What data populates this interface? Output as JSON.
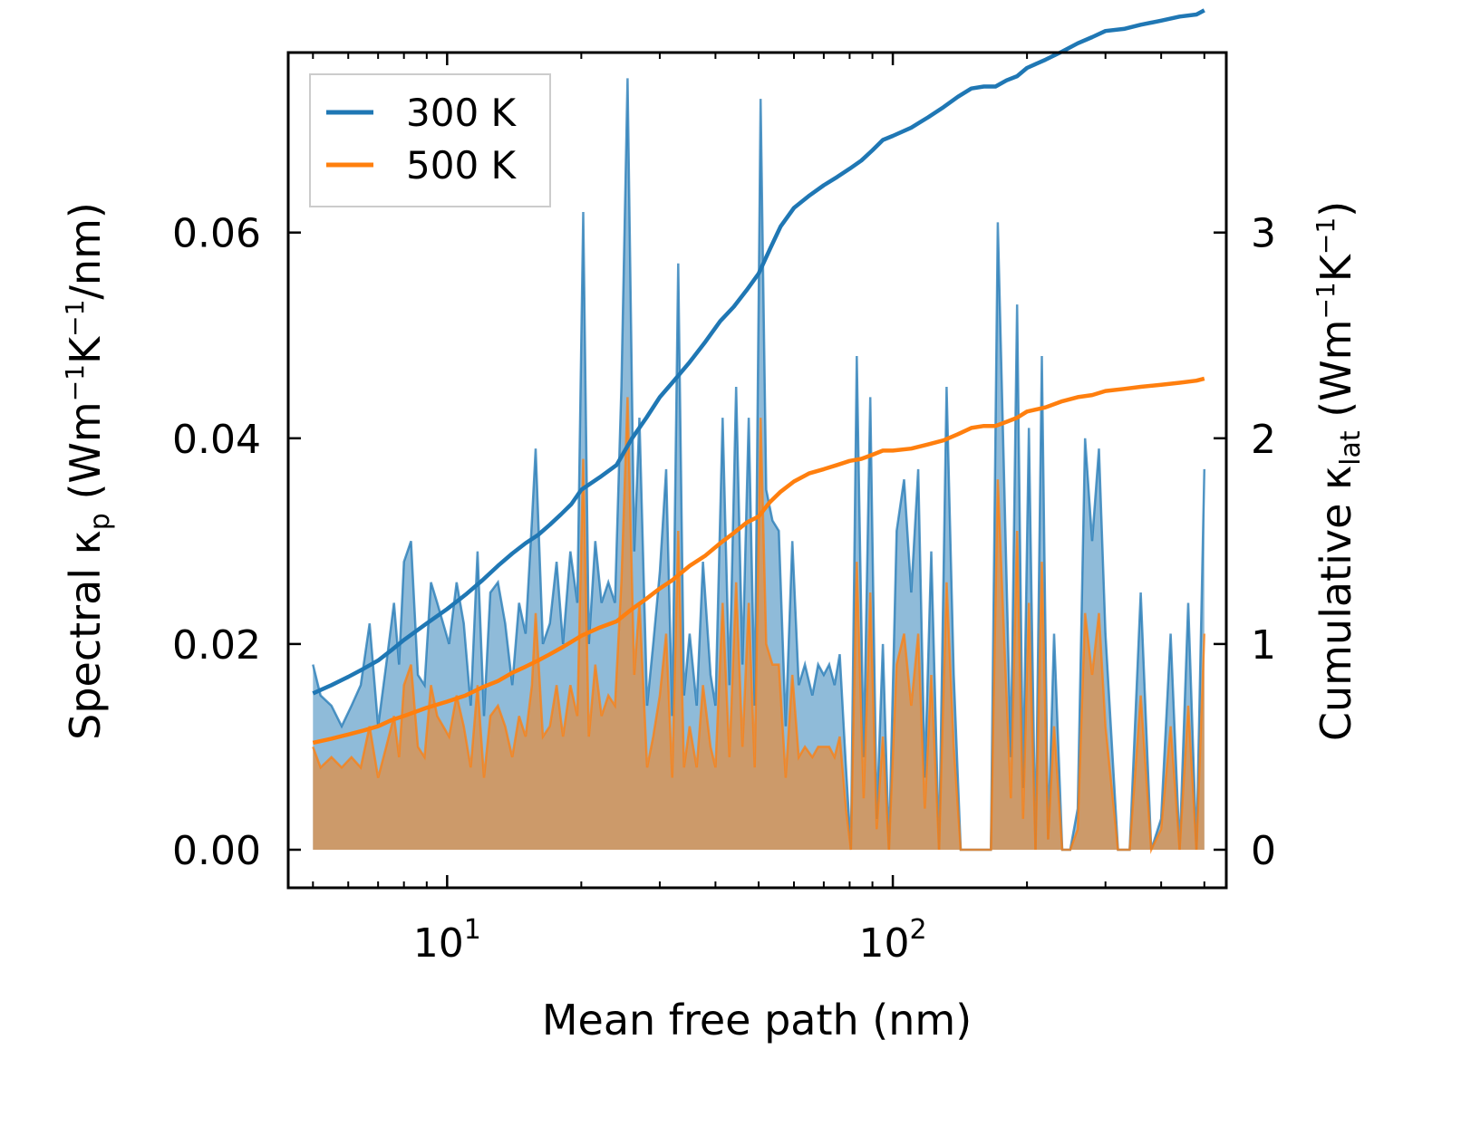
{
  "chart_data": {
    "type": "line",
    "xscale": "log",
    "xlim": [
      4.4,
      560
    ],
    "xlabel": "Mean free path (nm)",
    "ylabel_left": {
      "prefix": "Spectral κ",
      "sub": "p",
      "units_main": " (Wm",
      "exp1": "−1",
      "units_k": "K",
      "exp2": "−1",
      "units_tail": "/nm)"
    },
    "ylabel_right": {
      "prefix": "Cumulative κ",
      "sub": "lat",
      "units_main": " (Wm",
      "exp1": "−1",
      "units_k": "K",
      "exp2": "−1",
      "units_tail": ")"
    },
    "ylim_left": [
      -0.0037,
      0.0775
    ],
    "ylim_right": [
      -0.185,
      3.875
    ],
    "xticks": [
      {
        "base": "10",
        "exp": "1",
        "value": 10
      },
      {
        "base": "10",
        "exp": "2",
        "value": 100
      }
    ],
    "yticks_left": [
      "0.00",
      "0.02",
      "0.04",
      "0.06"
    ],
    "yticks_left_values": [
      0,
      0.02,
      0.04,
      0.06
    ],
    "yticks_right": [
      "0",
      "1",
      "2",
      "3"
    ],
    "yticks_right_values": [
      0,
      1,
      2,
      3
    ],
    "legend": {
      "position": "top-left",
      "entries": [
        "300 K",
        "500 K"
      ]
    },
    "colors": {
      "s300": "#1f77b4",
      "s500": "#ff7f0e",
      "fill300": "#1f77b4",
      "fill500": "#ff7f0e"
    },
    "spectral": [
      {
        "name": "300 K",
        "x": [
          5,
          5.2,
          5.5,
          5.8,
          6.1,
          6.4,
          6.7,
          7.0,
          7.3,
          7.6,
          7.8,
          8.0,
          8.3,
          8.6,
          8.9,
          9.2,
          9.5,
          9.8,
          10.1,
          10.5,
          10.9,
          11.3,
          11.7,
          12.1,
          12.5,
          13.0,
          13.5,
          14.0,
          14.5,
          15.0,
          15.5,
          15.8,
          16.4,
          17.0,
          17.6,
          18.2,
          18.9,
          19.6,
          20.2,
          20.8,
          21.5,
          22.2,
          23.0,
          23.8,
          24.6,
          25.4,
          26.3,
          27.0,
          28.1,
          29.0,
          30.0,
          31.0,
          32.0,
          33.0,
          34.0,
          35.0,
          36.3,
          37.5,
          39.0,
          40.0,
          41.5,
          43.0,
          44.5,
          46.0,
          47.5,
          49.0,
          50.5,
          52.0,
          53.7,
          55.5,
          57.5,
          59.5,
          61.5,
          63.5,
          66.0,
          68.0,
          70.0,
          72.0,
          74.0,
          76.0,
          78.5,
          80.5,
          83.0,
          86.0,
          89.0,
          92.0,
          95.0,
          98.0,
          102,
          106,
          110,
          114,
          118,
          122,
          127,
          132,
          137,
          142,
          148,
          154,
          160,
          166,
          172,
          178,
          184,
          190,
          196,
          202,
          209,
          216,
          223,
          230,
          240,
          250,
          260,
          270,
          280,
          290,
          300,
          320,
          340,
          360,
          380,
          400,
          420,
          440,
          460,
          480,
          500
        ],
        "y": [
          0.018,
          0.015,
          0.014,
          0.012,
          0.014,
          0.016,
          0.022,
          0.012,
          0.018,
          0.024,
          0.018,
          0.028,
          0.03,
          0.017,
          0.016,
          0.026,
          0.024,
          0.022,
          0.02,
          0.026,
          0.022,
          0.014,
          0.029,
          0.013,
          0.025,
          0.026,
          0.022,
          0.016,
          0.024,
          0.021,
          0.032,
          0.039,
          0.02,
          0.022,
          0.028,
          0.02,
          0.029,
          0.024,
          0.062,
          0.02,
          0.03,
          0.024,
          0.026,
          0.024,
          0.045,
          0.075,
          0.029,
          0.042,
          0.014,
          0.02,
          0.027,
          0.037,
          0.013,
          0.057,
          0.015,
          0.021,
          0.014,
          0.028,
          0.017,
          0.014,
          0.042,
          0.016,
          0.045,
          0.018,
          0.042,
          0.014,
          0.073,
          0.035,
          0.032,
          0.031,
          0.012,
          0.03,
          0.016,
          0.018,
          0.015,
          0.018,
          0.017,
          0.018,
          0.016,
          0.019,
          0.008,
          0.0,
          0.048,
          0.009,
          0.044,
          0.003,
          0.02,
          0.0,
          0.031,
          0.036,
          0.025,
          0.037,
          0.007,
          0.029,
          0.0,
          0.045,
          0.017,
          0.0,
          0.0,
          0.0,
          0.0,
          0.0,
          0.061,
          0.035,
          0.009,
          0.053,
          0.006,
          0.041,
          0.0,
          0.048,
          0.001,
          0.021,
          0.0,
          0.0,
          0.004,
          0.04,
          0.03,
          0.039,
          0.021,
          0.0,
          0.0,
          0.025,
          0.0,
          0.003,
          0.021,
          0.0,
          0.024,
          0.0,
          0.037
        ]
      },
      {
        "name": "500 K",
        "x": [
          5,
          5.2,
          5.5,
          5.8,
          6.1,
          6.4,
          6.7,
          7.0,
          7.3,
          7.6,
          7.8,
          8.0,
          8.3,
          8.6,
          8.9,
          9.2,
          9.5,
          9.8,
          10.1,
          10.5,
          10.9,
          11.3,
          11.7,
          12.1,
          12.5,
          13.0,
          13.5,
          14.0,
          14.5,
          15.0,
          15.5,
          15.8,
          16.4,
          17.0,
          17.6,
          18.2,
          18.9,
          19.6,
          20.2,
          20.8,
          21.5,
          22.2,
          23.0,
          23.8,
          24.6,
          25.4,
          26.3,
          27.0,
          28.1,
          29.0,
          30.0,
          31.0,
          32.0,
          33.0,
          34.0,
          35.0,
          36.3,
          37.5,
          39.0,
          40.0,
          41.5,
          43.0,
          44.5,
          46.0,
          47.5,
          49.0,
          50.5,
          52.0,
          53.7,
          55.5,
          57.5,
          59.5,
          61.5,
          63.5,
          66.0,
          68.0,
          70.0,
          72.0,
          74.0,
          76.0,
          78.5,
          80.5,
          83.0,
          86.0,
          89.0,
          92.0,
          95.0,
          98.0,
          102,
          106,
          110,
          114,
          118,
          122,
          127,
          132,
          137,
          142,
          148,
          154,
          160,
          166,
          172,
          178,
          184,
          190,
          196,
          202,
          209,
          216,
          223,
          230,
          240,
          250,
          260,
          270,
          280,
          290,
          300,
          320,
          340,
          360,
          380,
          400,
          420,
          440,
          460,
          480,
          500
        ],
        "y": [
          0.01,
          0.008,
          0.009,
          0.008,
          0.009,
          0.008,
          0.012,
          0.007,
          0.01,
          0.013,
          0.009,
          0.016,
          0.018,
          0.01,
          0.009,
          0.016,
          0.013,
          0.012,
          0.011,
          0.015,
          0.012,
          0.008,
          0.016,
          0.007,
          0.013,
          0.014,
          0.012,
          0.009,
          0.013,
          0.011,
          0.016,
          0.023,
          0.011,
          0.012,
          0.016,
          0.011,
          0.016,
          0.013,
          0.038,
          0.011,
          0.018,
          0.013,
          0.015,
          0.014,
          0.026,
          0.044,
          0.017,
          0.024,
          0.008,
          0.011,
          0.015,
          0.021,
          0.007,
          0.031,
          0.008,
          0.012,
          0.008,
          0.016,
          0.01,
          0.008,
          0.024,
          0.009,
          0.026,
          0.01,
          0.024,
          0.008,
          0.042,
          0.02,
          0.018,
          0.018,
          0.007,
          0.017,
          0.009,
          0.01,
          0.009,
          0.01,
          0.01,
          0.01,
          0.009,
          0.011,
          0.004,
          0.0,
          0.028,
          0.005,
          0.025,
          0.002,
          0.011,
          0.0,
          0.018,
          0.021,
          0.014,
          0.021,
          0.004,
          0.017,
          0.0,
          0.026,
          0.01,
          0.0,
          0.0,
          0.0,
          0.0,
          0.0,
          0.036,
          0.02,
          0.005,
          0.031,
          0.003,
          0.024,
          0.0,
          0.028,
          0.001,
          0.012,
          0.0,
          0.0,
          0.002,
          0.023,
          0.017,
          0.023,
          0.012,
          0.0,
          0.0,
          0.015,
          0.0,
          0.002,
          0.012,
          0.0,
          0.014,
          0.0,
          0.021
        ]
      }
    ],
    "cumulative": [
      {
        "name": "300 K",
        "x": [
          5,
          5.5,
          6,
          6.5,
          7,
          7.5,
          8,
          9,
          10,
          11,
          12,
          13,
          14,
          15,
          16,
          17,
          18,
          19,
          20,
          22,
          24,
          26,
          28,
          30,
          32,
          35,
          38,
          41,
          44,
          47,
          50,
          53,
          56,
          60,
          65,
          70,
          75,
          80,
          85,
          90,
          95,
          100,
          110,
          120,
          130,
          140,
          150,
          160,
          170,
          180,
          190,
          200,
          220,
          240,
          260,
          280,
          300,
          330,
          360,
          400,
          440,
          480,
          500
        ],
        "y": [
          0.76,
          0.8,
          0.84,
          0.88,
          0.92,
          0.97,
          1.02,
          1.1,
          1.17,
          1.24,
          1.31,
          1.38,
          1.44,
          1.49,
          1.53,
          1.58,
          1.63,
          1.68,
          1.75,
          1.81,
          1.87,
          2.0,
          2.1,
          2.2,
          2.27,
          2.37,
          2.47,
          2.57,
          2.64,
          2.72,
          2.8,
          2.92,
          3.03,
          3.12,
          3.18,
          3.23,
          3.27,
          3.31,
          3.35,
          3.4,
          3.45,
          3.47,
          3.51,
          3.56,
          3.61,
          3.66,
          3.7,
          3.71,
          3.71,
          3.74,
          3.76,
          3.8,
          3.84,
          3.88,
          3.92,
          3.95,
          3.98,
          3.99,
          4.01,
          4.03,
          4.05,
          4.06,
          4.08
        ]
      },
      {
        "name": "500 K",
        "x": [
          5,
          5.5,
          6,
          6.5,
          7,
          7.5,
          8,
          9,
          10,
          11,
          12,
          13,
          14,
          15,
          16,
          17,
          18,
          19,
          20,
          22,
          24,
          26,
          28,
          30,
          32,
          35,
          38,
          41,
          44,
          47,
          50,
          53,
          56,
          60,
          65,
          70,
          75,
          80,
          85,
          90,
          95,
          100,
          110,
          120,
          130,
          140,
          150,
          160,
          170,
          180,
          190,
          200,
          220,
          240,
          260,
          280,
          300,
          330,
          360,
          400,
          440,
          480,
          500
        ],
        "y": [
          0.52,
          0.54,
          0.56,
          0.58,
          0.6,
          0.63,
          0.65,
          0.69,
          0.72,
          0.75,
          0.79,
          0.82,
          0.86,
          0.89,
          0.92,
          0.95,
          0.98,
          1.01,
          1.04,
          1.08,
          1.11,
          1.17,
          1.22,
          1.27,
          1.31,
          1.38,
          1.43,
          1.49,
          1.54,
          1.59,
          1.62,
          1.69,
          1.74,
          1.79,
          1.83,
          1.85,
          1.87,
          1.89,
          1.9,
          1.92,
          1.94,
          1.94,
          1.95,
          1.97,
          1.99,
          2.02,
          2.05,
          2.06,
          2.06,
          2.08,
          2.1,
          2.13,
          2.15,
          2.18,
          2.2,
          2.21,
          2.23,
          2.24,
          2.25,
          2.26,
          2.27,
          2.28,
          2.29
        ]
      }
    ]
  }
}
